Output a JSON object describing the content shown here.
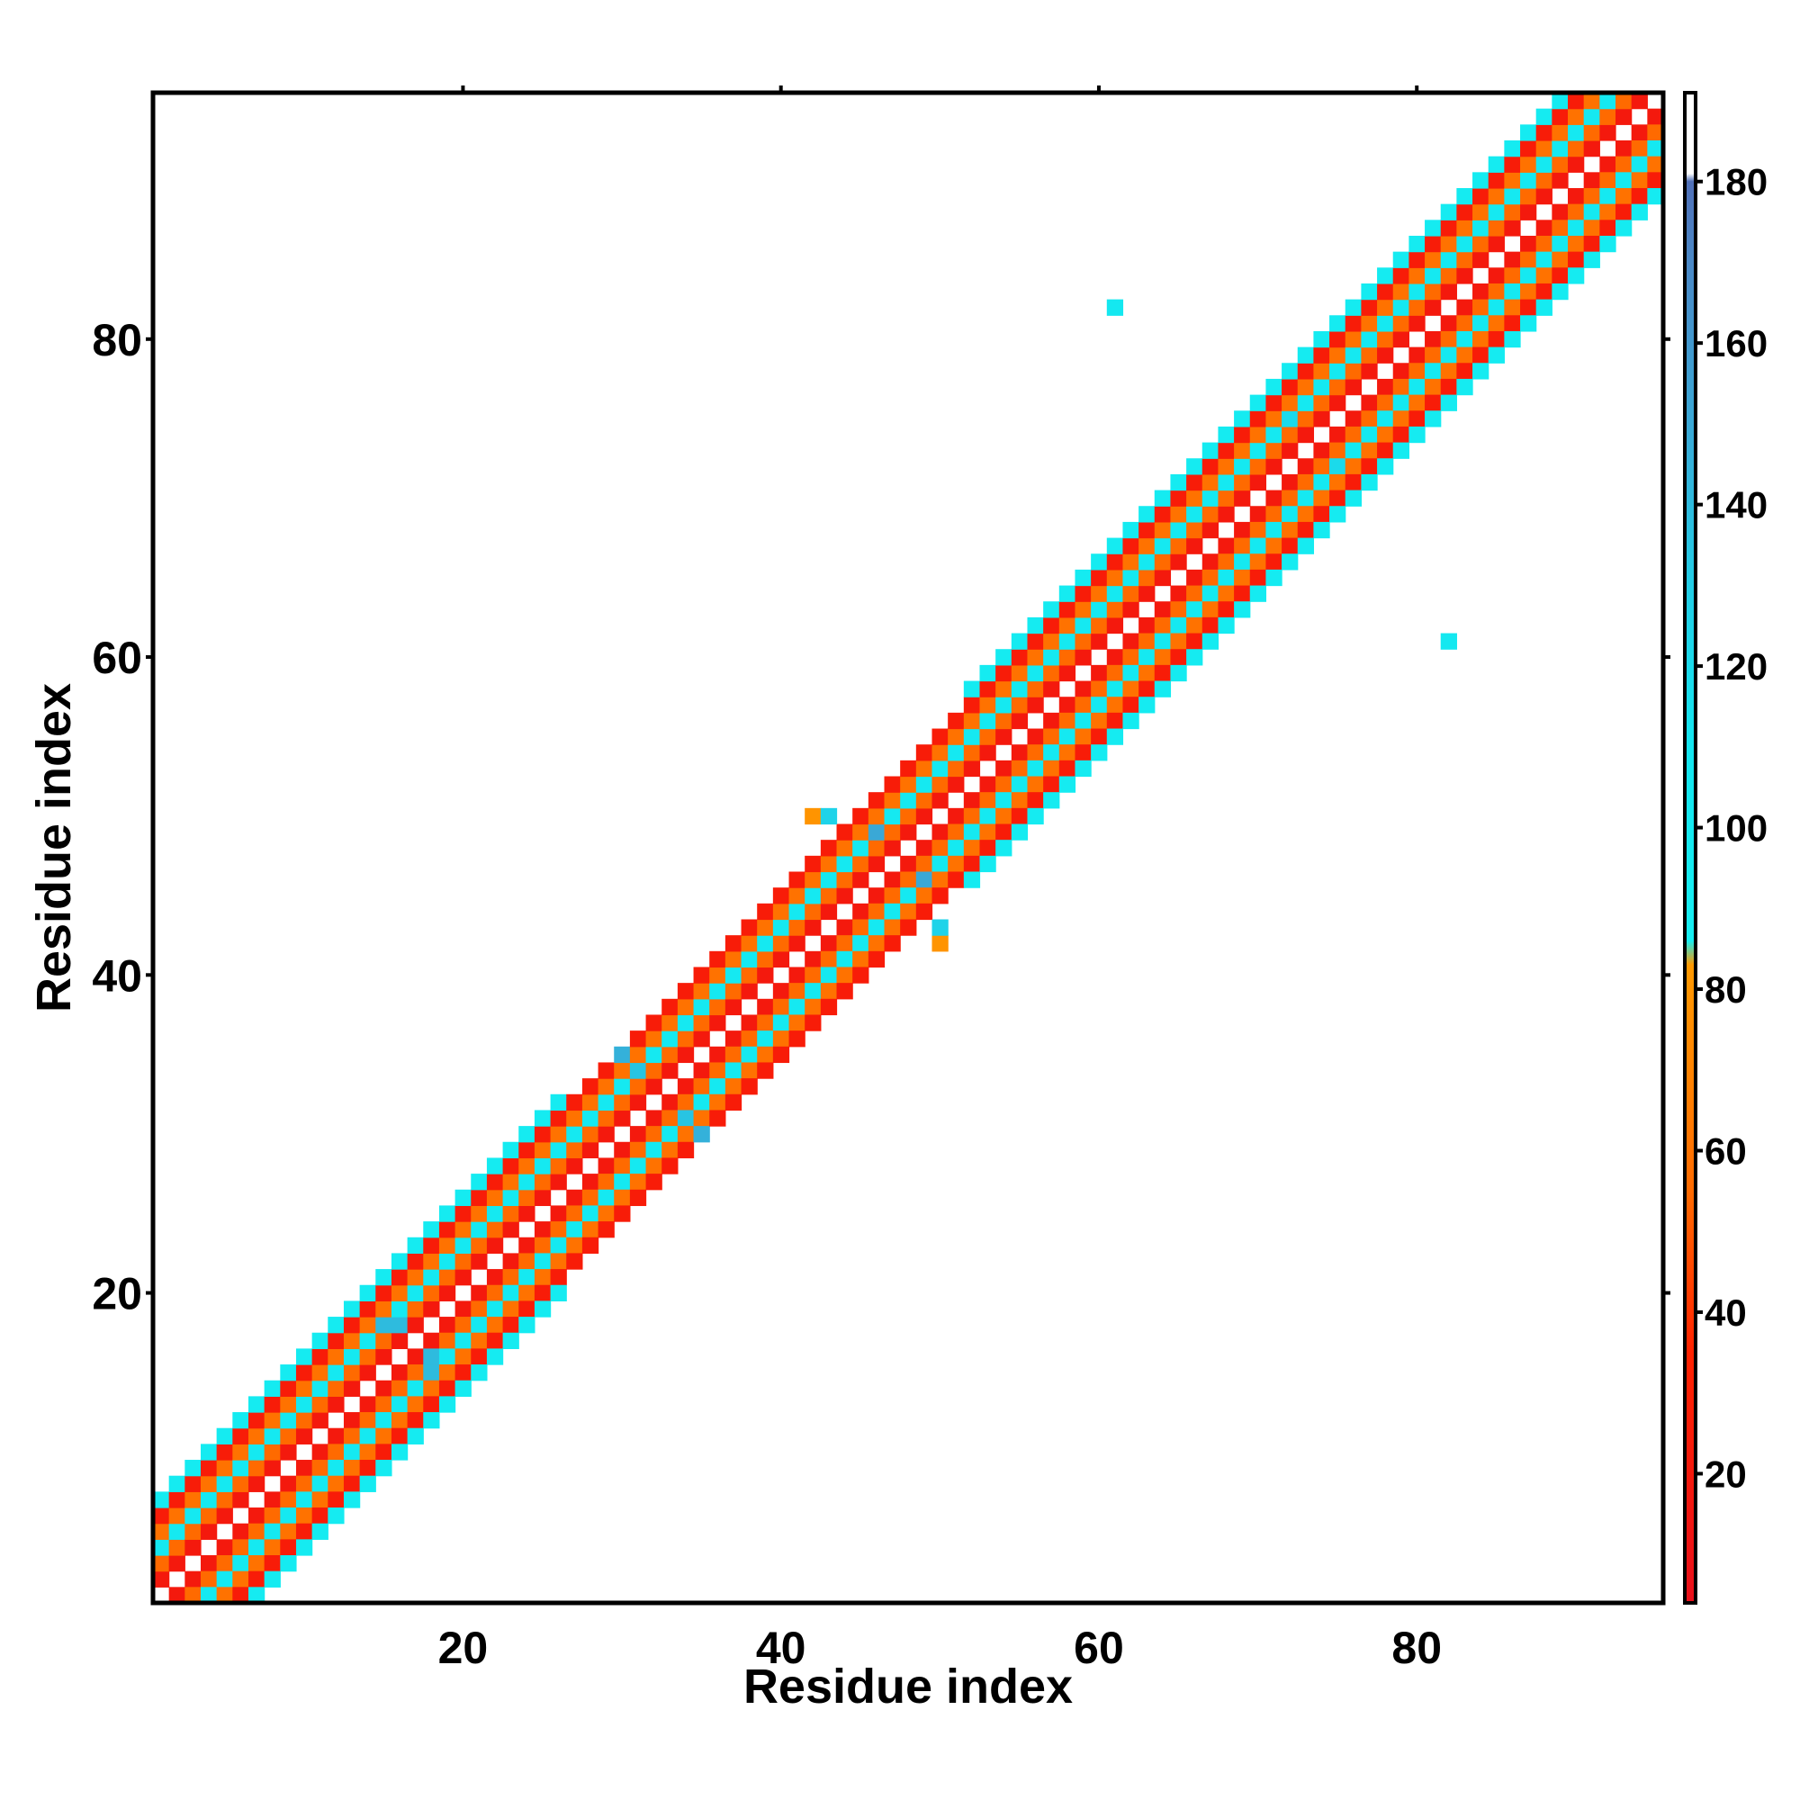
{
  "chart_data": {
    "type": "heatmap",
    "title": "",
    "xlabel": "Residue index",
    "ylabel": "Residue index",
    "xlim": [
      0.5,
      95.5
    ],
    "ylim": [
      0.5,
      95.5
    ],
    "xticks": [
      20,
      40,
      60,
      80
    ],
    "yticks": [
      20,
      40,
      60,
      80
    ],
    "grid": false,
    "colorbar": {
      "range": [
        4,
        191
      ],
      "ticks": [
        20,
        40,
        60,
        80,
        100,
        120,
        140,
        160,
        180
      ],
      "stops": [
        {
          "value": 4,
          "color": "#e8101a"
        },
        {
          "value": 35,
          "color": "#ff2200"
        },
        {
          "value": 55,
          "color": "#ff6a00"
        },
        {
          "value": 83,
          "color": "#ff9900"
        },
        {
          "value": 86,
          "color": "#16eef2"
        },
        {
          "value": 110,
          "color": "#14e6f0"
        },
        {
          "value": 130,
          "color": "#22cde6"
        },
        {
          "value": 150,
          "color": "#3aa8d6"
        },
        {
          "value": 170,
          "color": "#4a88c6"
        },
        {
          "value": 180,
          "color": "#5070b8"
        },
        {
          "value": 181,
          "color": "#ffffff"
        },
        {
          "value": 191,
          "color": "#ffffff"
        }
      ]
    },
    "band": {
      "description_values": "diagonal contact band; cell value depends on |i-j|",
      "offset_values": {
        "1": 20,
        "2": 55,
        "3": 100,
        "4": 60,
        "5": 25,
        "6": 95
      },
      "segments": [
        {
          "from": 1,
          "to": 19,
          "max_offset": 6
        },
        {
          "from": 20,
          "to": 26,
          "max_offset": 6
        },
        {
          "from": 27,
          "to": 35,
          "max_offset": 5
        },
        {
          "from": 36,
          "to": 43,
          "max_offset": 5
        },
        {
          "from": 44,
          "to": 51,
          "max_offset": 5
        },
        {
          "from": 52,
          "to": 70,
          "max_offset": 6
        },
        {
          "from": 71,
          "to": 95,
          "max_offset": 6
        }
      ]
    },
    "off_diagonal_cells": [
      {
        "x": 61,
        "y": 82,
        "value": 105
      },
      {
        "x": 82,
        "y": 61,
        "value": 105
      },
      {
        "x": 42,
        "y": 50,
        "value": 80
      },
      {
        "x": 43,
        "y": 50,
        "value": 125
      },
      {
        "x": 50,
        "y": 42,
        "value": 80
      },
      {
        "x": 50,
        "y": 43,
        "value": 125
      },
      {
        "x": 15,
        "y": 18,
        "value": 140
      },
      {
        "x": 16,
        "y": 18,
        "value": 140
      },
      {
        "x": 18,
        "y": 15,
        "value": 140
      },
      {
        "x": 18,
        "y": 16,
        "value": 140
      },
      {
        "x": 30,
        "y": 35,
        "value": 145
      },
      {
        "x": 31,
        "y": 34,
        "value": 135
      },
      {
        "x": 35,
        "y": 30,
        "value": 145
      },
      {
        "x": 34,
        "y": 31,
        "value": 135
      },
      {
        "x": 46,
        "y": 49,
        "value": 150
      },
      {
        "x": 49,
        "y": 46,
        "value": 150
      },
      {
        "x": 72,
        "y": 75,
        "value": 120
      },
      {
        "x": 75,
        "y": 72,
        "value": 120
      }
    ]
  }
}
